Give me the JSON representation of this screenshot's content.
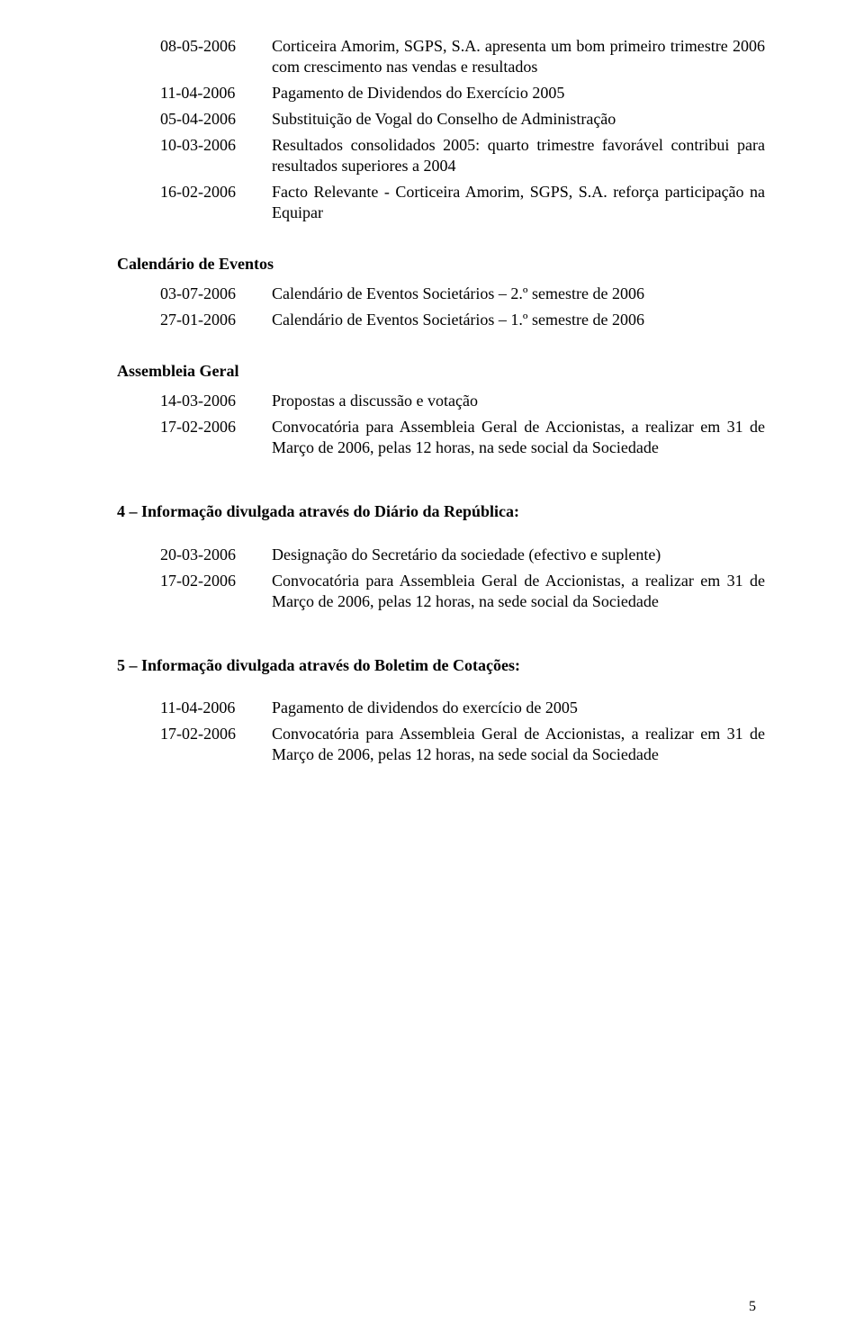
{
  "topRows": [
    {
      "date": "08-05-2006",
      "desc": "Corticeira Amorim, SGPS, S.A. apresenta um bom primeiro trimestre 2006 com crescimento nas vendas e resultados"
    },
    {
      "date": "11-04-2006",
      "desc": "Pagamento de Dividendos do Exercício 2005"
    },
    {
      "date": "05-04-2006",
      "desc": "Substituição de Vogal do Conselho de Administração"
    },
    {
      "date": "10-03-2006",
      "desc": "Resultados consolidados 2005: quarto trimestre favorável contribui para resultados superiores a 2004"
    },
    {
      "date": "16-02-2006",
      "desc": "Facto Relevante - Corticeira Amorim, SGPS, S.A. reforça participação na Equipar"
    }
  ],
  "calendarHeading": "Calendário de Eventos",
  "calendarRows": [
    {
      "date": "03-07-2006",
      "desc": "Calendário de Eventos Societários – 2.º semestre de 2006"
    },
    {
      "date": "27-01-2006",
      "desc": "Calendário de Eventos Societários – 1.º semestre de 2006"
    }
  ],
  "assembleiaHeading": "Assembleia Geral",
  "assembleiaRows": [
    {
      "date": "14-03-2006",
      "desc": "Propostas a discussão e votação"
    },
    {
      "date": "17-02-2006",
      "desc": "Convocatória para Assembleia Geral de Accionistas, a realizar em 31 de Março de 2006, pelas 12 horas, na sede social da Sociedade"
    }
  ],
  "section4Heading": "4 – Informação divulgada através do Diário da República:",
  "section4Rows": [
    {
      "date": "20-03-2006",
      "desc": "Designação do Secretário da sociedade (efectivo e suplente)"
    },
    {
      "date": "17-02-2006",
      "desc": "Convocatória para Assembleia Geral de Accionistas, a realizar em 31 de Março de 2006, pelas 12 horas, na sede social da Sociedade"
    }
  ],
  "section5Heading": "5 – Informação divulgada através do Boletim de Cotações:",
  "section5Rows": [
    {
      "date": "11-04-2006",
      "desc": "Pagamento de dividendos do exercício de 2005"
    },
    {
      "date": "17-02-2006",
      "desc": "Convocatória para Assembleia Geral de Accionistas, a realizar em 31 de Março de 2006, pelas 12 horas, na sede social da Sociedade"
    }
  ],
  "pageNumber": "5"
}
